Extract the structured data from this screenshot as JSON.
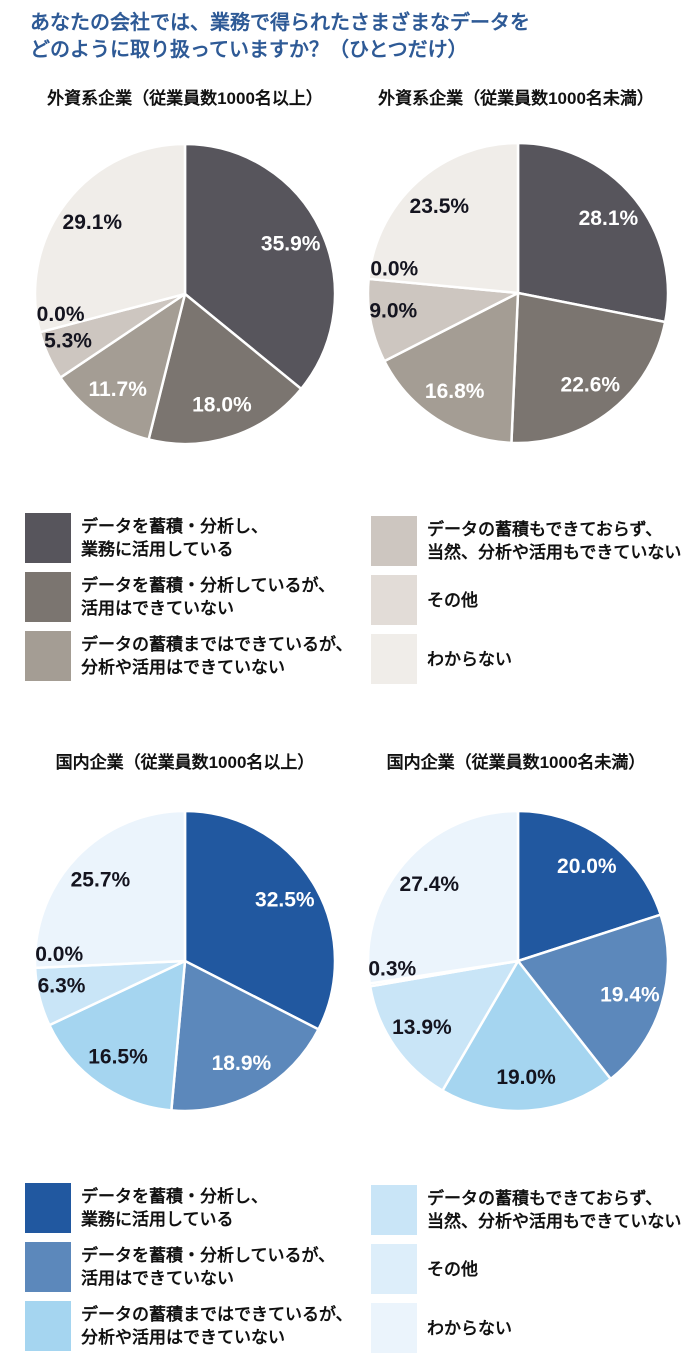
{
  "page": {
    "background": "#ffffff",
    "title": {
      "lines": [
        "あなたの会社では、業務で得られたさまざまなデータを",
        "どのように取り扱っていますか？（ひとつだけ）"
      ],
      "color": "#2e5a96"
    }
  },
  "palettes": {
    "gray": [
      "#57555c",
      "#7b7570",
      "#a49d94",
      "#cdc6c0",
      "#e2dcd7",
      "#f0ede9"
    ],
    "blue": [
      "#2158a0",
      "#5c88bb",
      "#a5d5f0",
      "#c9e5f7",
      "#ddeefa",
      "#ebf4fc"
    ]
  },
  "label_colors": {
    "dark": "#14141f",
    "light": "#ffffff"
  },
  "legend": {
    "items": [
      {
        "line1": "データを蓄積・分析し、",
        "line2": "業務に活用している"
      },
      {
        "line1": "データを蓄積・分析しているが、",
        "line2": "活用はできていない"
      },
      {
        "line1": "データの蓄積まではできているが、",
        "line2": "分析や活用はできていない"
      },
      {
        "line1": "データの蓄積もできておらず、",
        "line2": "当然、分析や活用もできていない"
      },
      {
        "line1": "その他",
        "line2": ""
      },
      {
        "line1": "わからない",
        "line2": ""
      }
    ]
  },
  "chart_data": [
    {
      "type": "pie",
      "title": "外資系企業（従業員数1000名以上）",
      "palette": "gray",
      "unit": "%",
      "categories": [
        "データを蓄積・分析し、業務に活用している",
        "データを蓄積・分析しているが、活用はできていない",
        "データの蓄積まではできているが、分析や活用はできていない",
        "データの蓄積もできておらず、当然、分析や活用もできていない",
        "その他",
        "わからない"
      ],
      "values": [
        35.9,
        18.0,
        11.7,
        5.3,
        0.0,
        29.1
      ]
    },
    {
      "type": "pie",
      "title": "外資系企業（従業員数1000名未満）",
      "palette": "gray",
      "unit": "%",
      "categories": [
        "データを蓄積・分析し、業務に活用している",
        "データを蓄積・分析しているが、活用はできていない",
        "データの蓄積まではできているが、分析や活用はできていない",
        "データの蓄積もできておらず、当然、分析や活用もできていない",
        "その他",
        "わからない"
      ],
      "values": [
        28.1,
        22.6,
        16.8,
        9.0,
        0.0,
        23.5
      ]
    },
    {
      "type": "pie",
      "title": "国内企業（従業員数1000名以上）",
      "palette": "blue",
      "unit": "%",
      "categories": [
        "データを蓄積・分析し、業務に活用している",
        "データを蓄積・分析しているが、活用はできていない",
        "データの蓄積まではできているが、分析や活用はできていない",
        "データの蓄積もできておらず、当然、分析や活用もできていない",
        "その他",
        "わからない"
      ],
      "values": [
        32.5,
        18.9,
        16.5,
        6.3,
        0.0,
        25.7
      ]
    },
    {
      "type": "pie",
      "title": "国内企業（従業員数1000名未満）",
      "palette": "blue",
      "unit": "%",
      "categories": [
        "データを蓄積・分析し、業務に活用している",
        "データを蓄積・分析しているが、活用はできていない",
        "データの蓄積まではできているが、分析や活用はできていない",
        "データの蓄積もできておらず、当然、分析や活用もできていない",
        "その他",
        "わからない"
      ],
      "values": [
        20.0,
        19.4,
        19.0,
        13.9,
        0.3,
        27.4
      ]
    }
  ]
}
